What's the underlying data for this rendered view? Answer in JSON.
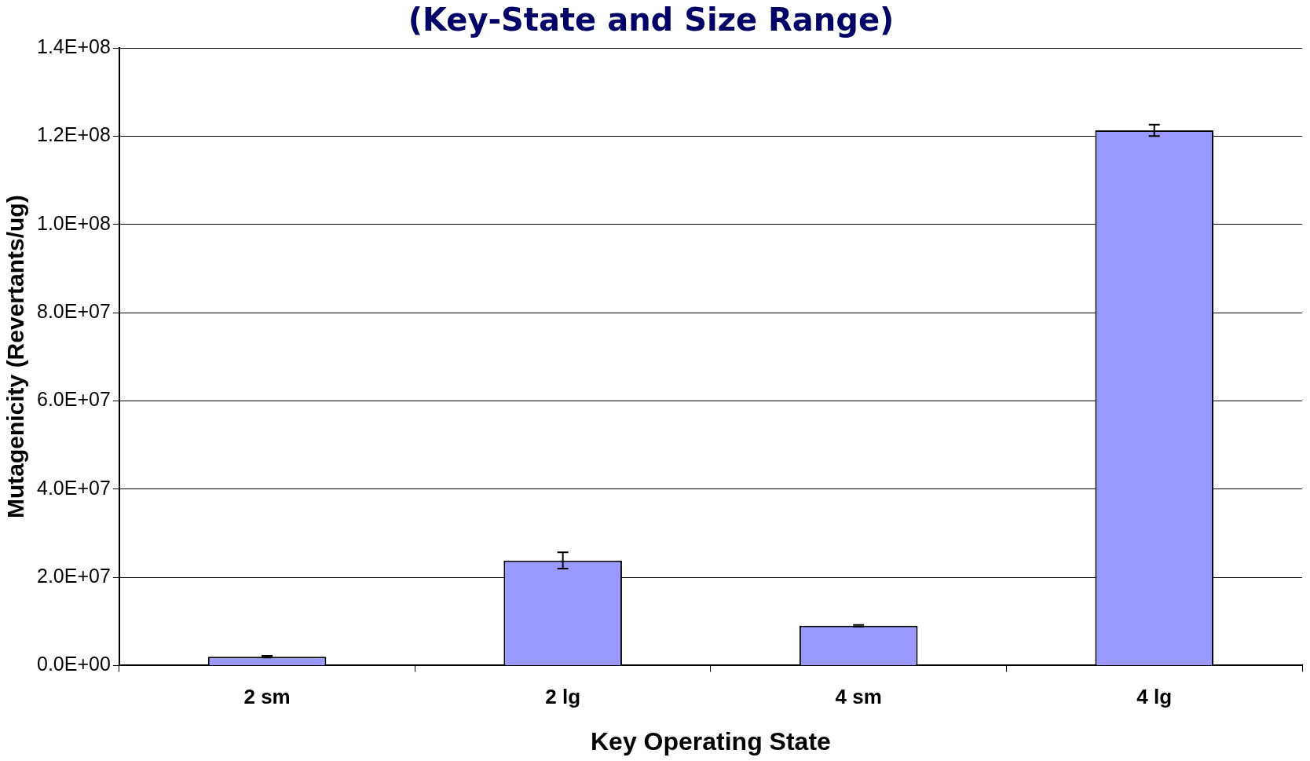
{
  "chart_data": {
    "type": "bar",
    "title": "(Key-State and Size Range)",
    "xlabel": "Key Operating State",
    "ylabel": "Mutagenicity (Revertants/ug)",
    "categories": [
      "2 sm",
      "2 lg",
      "4 sm",
      "4 lg"
    ],
    "values": [
      2000000,
      23800000,
      9000000,
      121300000
    ],
    "errors": [
      200000,
      1850000,
      200000,
      1300000
    ],
    "color": "#9999ff",
    "ylim": [
      0,
      140000000
    ],
    "yticks": [
      {
        "value": 0,
        "label": "0.0E+00"
      },
      {
        "value": 20000000,
        "label": "2.0E+07"
      },
      {
        "value": 40000000,
        "label": "4.0E+07"
      },
      {
        "value": 60000000,
        "label": "6.0E+07"
      },
      {
        "value": 80000000,
        "label": "8.0E+07"
      },
      {
        "value": 100000000,
        "label": "1.0E+08"
      },
      {
        "value": 120000000,
        "label": "1.2E+08"
      },
      {
        "value": 140000000,
        "label": "1.4E+08"
      }
    ],
    "grid": "y"
  }
}
